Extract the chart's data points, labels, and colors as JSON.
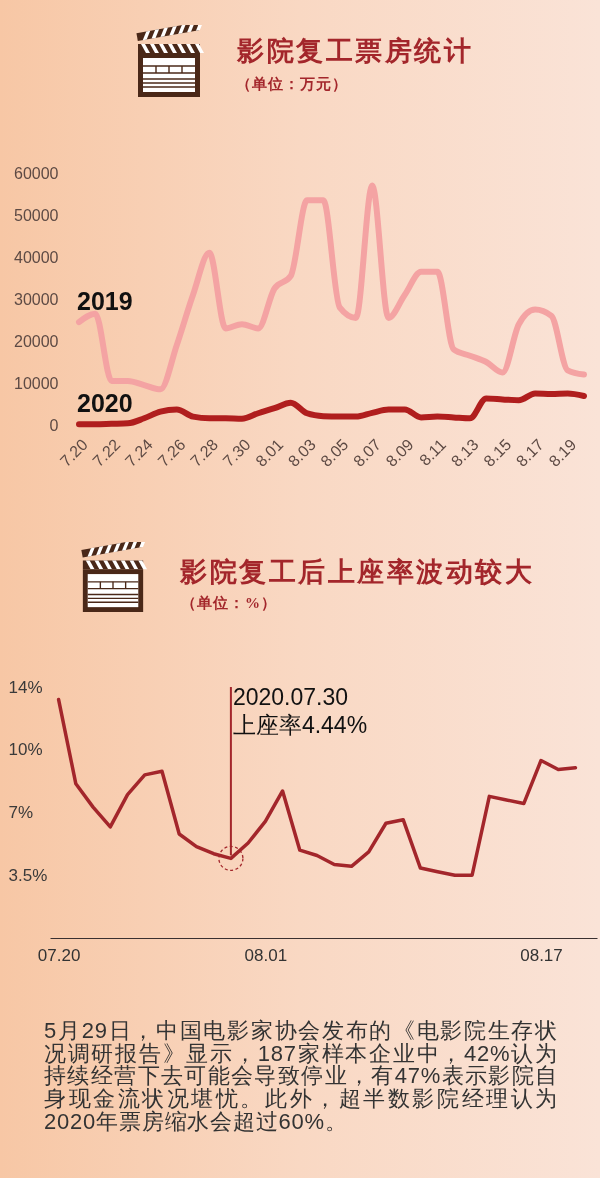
{
  "chart_data": [
    {
      "type": "line",
      "title": "影院复工票房统计",
      "subtitle": "（单位：万元）",
      "categories": [
        "7.20",
        null,
        "7.22",
        null,
        "7.24",
        null,
        "7.26",
        null,
        "7.28",
        null,
        "7.30",
        null,
        "8.01",
        null,
        "8.03",
        null,
        "8.05",
        null,
        "8.07",
        null,
        "8.09",
        null,
        "8.11",
        null,
        "8.13",
        null,
        "8.15",
        null,
        "8.17",
        null,
        "8.19",
        null
      ],
      "series": [
        {
          "name": "2019",
          "color": "#f4a3a3",
          "values": [
            24500,
            26500,
            10500,
            10500,
            9500,
            8500,
            19000,
            31000,
            41000,
            23000,
            24000,
            23000,
            32500,
            35500,
            53500,
            53500,
            28000,
            25500,
            57000,
            25500,
            31000,
            36500,
            36500,
            18000,
            16500,
            15000,
            12500,
            24000,
            27500,
            26000,
            13000,
            12000
          ]
        },
        {
          "name": "2020",
          "color": "#b01e1e",
          "values": [
            200,
            200,
            300,
            400,
            1600,
            3200,
            3700,
            2000,
            1600,
            1600,
            1500,
            2800,
            4000,
            5300,
            2800,
            2100,
            2000,
            2000,
            2900,
            3700,
            3700,
            1800,
            2000,
            1800,
            1600,
            6300,
            6100,
            5900,
            7500,
            7400,
            7500,
            6900
          ]
        }
      ],
      "ylim": [
        0,
        60000
      ],
      "yticks": [
        0,
        10000,
        20000,
        30000,
        40000,
        50000,
        60000
      ]
    },
    {
      "type": "line",
      "title": "影院复工后上座率波动较大",
      "subtitle": "（单位：%）",
      "x": [
        "2020-07-20",
        "2020-07-21",
        "2020-07-22",
        "2020-07-23",
        "2020-07-24",
        "2020-07-25",
        "2020-07-26",
        "2020-07-27",
        "2020-07-28",
        "2020-07-29",
        "2020-07-30",
        "2020-07-31",
        "2020-08-01",
        "2020-08-02",
        "2020-08-03",
        "2020-08-04",
        "2020-08-05",
        "2020-08-06",
        "2020-08-07",
        "2020-08-08",
        "2020-08-09",
        "2020-08-10",
        "2020-08-11",
        "2020-08-12",
        "2020-08-13",
        "2020-08-14",
        "2020-08-15",
        "2020-08-16",
        "2020-08-17",
        "2020-08-18",
        "2020-08-19"
      ],
      "values": [
        13.3,
        8.6,
        7.3,
        6.2,
        8.0,
        9.1,
        9.3,
        5.8,
        5.1,
        4.7,
        4.44,
        5.3,
        6.5,
        8.2,
        4.9,
        4.6,
        4.1,
        4.0,
        4.8,
        6.4,
        6.6,
        3.9,
        3.7,
        3.5,
        3.5,
        7.9,
        7.7,
        7.5,
        9.9,
        9.4,
        9.5
      ],
      "color": "#a3262b",
      "xlim": [
        "2020-07-19T12:00",
        "2020-08-20T06:00"
      ],
      "xticks": [
        {
          "value": "2020-07-20",
          "label": "07.20"
        },
        {
          "value": "2020-08-01",
          "label": "08.01"
        },
        {
          "value": "2020-08-17",
          "label": "08.17"
        }
      ],
      "ylim": [
        0,
        14
      ],
      "yticks": [
        {
          "value": 3.5,
          "label": "3.5%"
        },
        {
          "value": 7,
          "label": "7%"
        },
        {
          "value": 10.5,
          "label": "10%"
        },
        {
          "value": 14,
          "label": "14%"
        }
      ],
      "annotations": [
        {
          "text": "2020.07.30\n上座率4.44%",
          "x": "2020-07-30",
          "y": 4.44
        },
        "5月29日，中国电影家协会发布的《电影院生存状况调研报告》显示，187家样本企业中，42%认为持续经营下去可能会导致停业，有47%表示影院自身现金流状况堪忧。此外，超半数影院经理认为2020年票房缩水会超过60%。"
      ]
    }
  ]
}
